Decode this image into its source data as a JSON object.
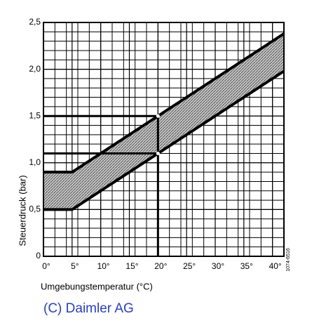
{
  "chart_data": {
    "type": "band",
    "x_label": "Umgebungstemperatur (°C)",
    "y_label": "Steuerdruck (bar)",
    "code": "1074-6516",
    "credit": "(C) Daimler AG",
    "xlim": [
      0,
      42
    ],
    "ylim": [
      0,
      2.5
    ],
    "xticks": [
      {
        "value": 0,
        "label": "0°"
      },
      {
        "value": 5,
        "label": "5°"
      },
      {
        "value": 10,
        "label": "10°"
      },
      {
        "value": 15,
        "label": "15°"
      },
      {
        "value": 20,
        "label": "20°"
      },
      {
        "value": 25,
        "label": "25°"
      },
      {
        "value": 30,
        "label": "30°"
      },
      {
        "value": 35,
        "label": "35°"
      },
      {
        "value": 40,
        "label": "40°"
      }
    ],
    "yticks": [
      0,
      {
        "value": 0.5,
        "label": "0,5"
      },
      {
        "value": 1.0,
        "label": "1,0"
      },
      {
        "value": 1.5,
        "label": "1,5"
      },
      {
        "value": 2.0,
        "label": "2,0"
      },
      {
        "value": 2.5,
        "label": "2,5"
      }
    ],
    "grid": {
      "x_step": 2,
      "y_step": 0.1
    },
    "x": [
      0,
      5,
      42
    ],
    "series": [
      {
        "color": "#000000",
        "values": [
          0.5,
          0.5,
          1.98
        ]
      },
      {
        "color": "#000000",
        "values": [
          0.9,
          0.9,
          2.38
        ]
      }
    ],
    "band_color": "#9a9a9a",
    "markers": {
      "x": [
        20,
        20
      ],
      "y": [
        1.5,
        1.1
      ]
    }
  }
}
